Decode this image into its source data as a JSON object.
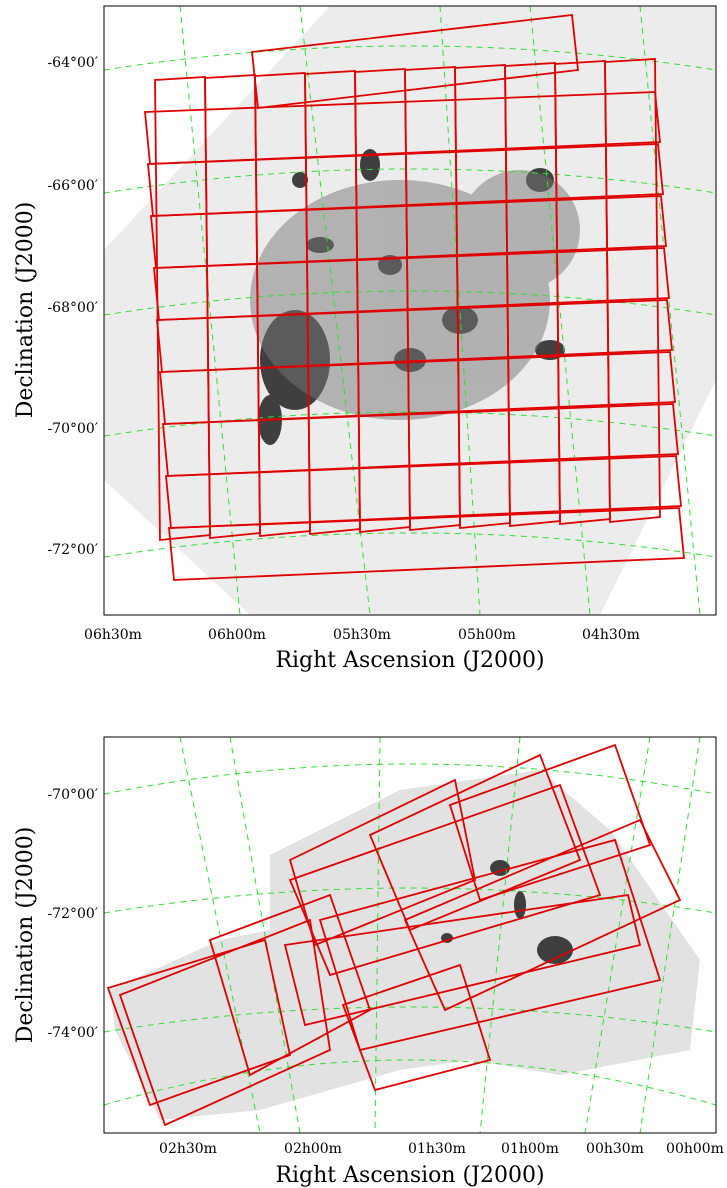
{
  "panels": [
    {
      "ylabel": "Declination (J2000)",
      "xlabel": "Right Ascension (J2000)",
      "ytick_labels": [
        "-64°00′",
        "-66°00′",
        "-68°00′",
        "-70°00′",
        "-72°00′"
      ],
      "xtick_labels": [
        "06h30m",
        "06h00m",
        "05h30m",
        "05h00m",
        "04h30m"
      ]
    },
    {
      "ylabel": "Declination (J2000)",
      "xlabel": "Right Ascension (J2000)",
      "ytick_labels": [
        "-70°00′",
        "-72°00′",
        "-74°00′"
      ],
      "xtick_labels": [
        "02h30m",
        "02h00m",
        "01h30m",
        "01h00m",
        "00h30m",
        "00h00m"
      ]
    }
  ]
}
